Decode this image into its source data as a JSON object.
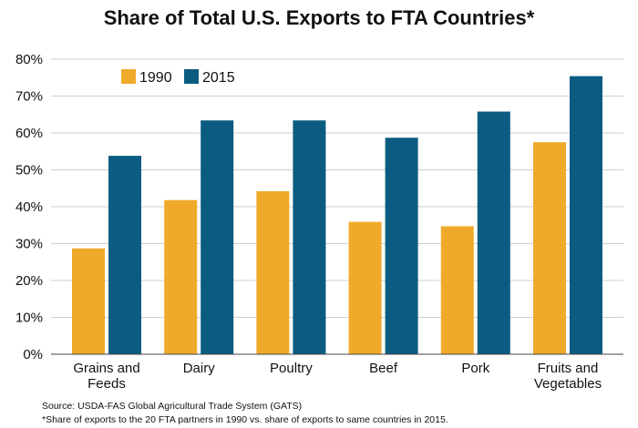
{
  "chart_data": {
    "type": "bar",
    "title": "Share of Total U.S. Exports to FTA Countries*",
    "categories": [
      [
        "Grains and",
        "Feeds"
      ],
      [
        "Dairy"
      ],
      [
        "Poultry"
      ],
      [
        "Beef"
      ],
      [
        "Pork"
      ],
      [
        "Fruits and",
        "Vegetables"
      ]
    ],
    "series": [
      {
        "name": "1990",
        "color": "#f0aa2b",
        "values": [
          28.7,
          41.8,
          44.2,
          35.9,
          34.7,
          57.5
        ]
      },
      {
        "name": "2015",
        "color": "#0b5c80",
        "values": [
          53.8,
          63.4,
          63.4,
          58.7,
          65.8,
          75.4
        ]
      }
    ],
    "ylim": [
      0,
      80
    ],
    "yticks": [
      0,
      10,
      20,
      30,
      40,
      50,
      60,
      70,
      80
    ],
    "ytick_labels": [
      "0%",
      "10%",
      "20%",
      "30%",
      "40%",
      "50%",
      "60%",
      "70%",
      "80%"
    ],
    "xlabel": "",
    "ylabel": "",
    "grid": true,
    "legend": "top-left"
  },
  "notes": {
    "source": "Source:  USDA-FAS Global Agricultural Trade System (GATS)",
    "footnote": "*Share of exports to the 20 FTA partners in 1990 vs. share of exports to same countries in 2015."
  }
}
